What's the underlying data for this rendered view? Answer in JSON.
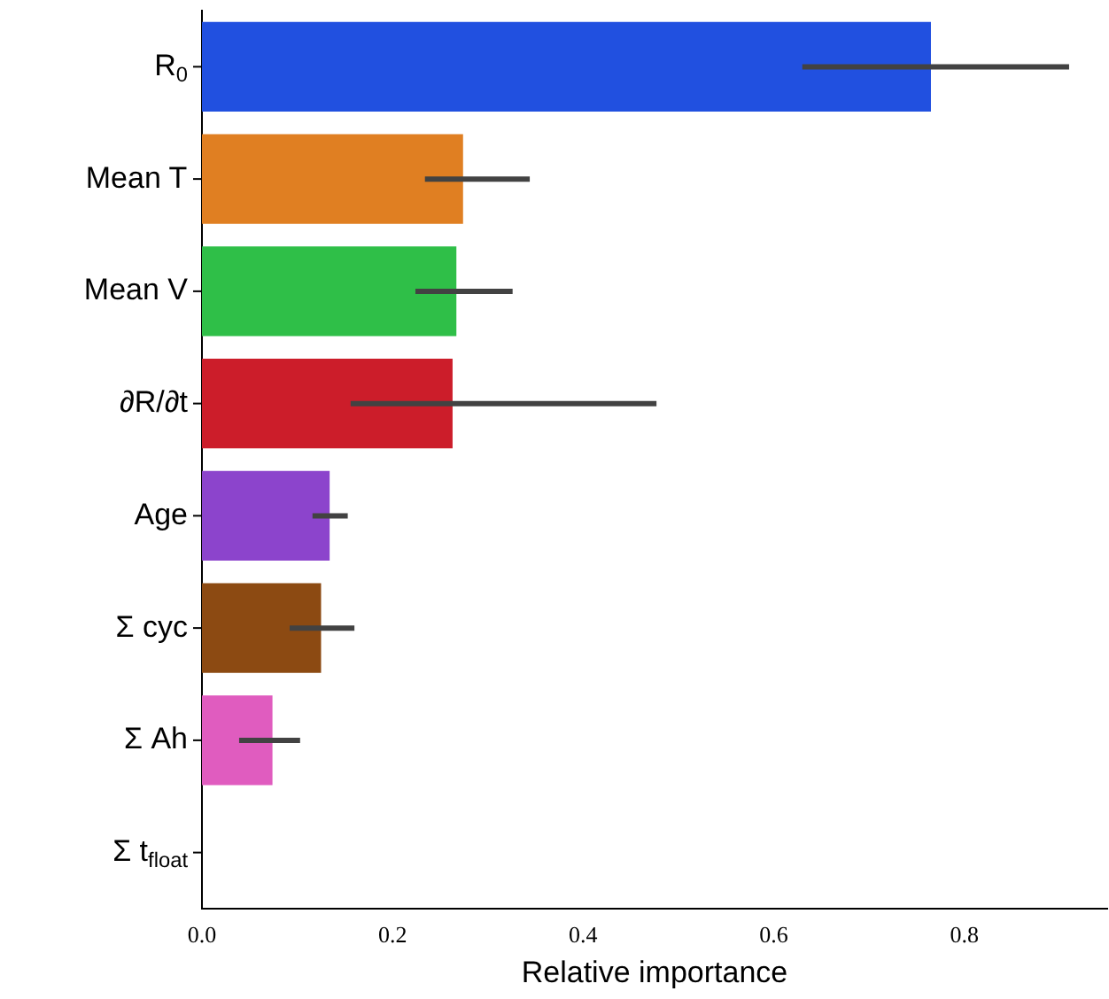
{
  "chart_data": {
    "type": "bar",
    "orientation": "horizontal",
    "xlabel": "Relative importance",
    "categories": [
      "R$_{0}$",
      "Mean T",
      "Mean V",
      "∂R/∂t",
      "Age",
      "Σ cyc",
      "Σ Ah",
      "Σ t$_{float}$"
    ],
    "values": [
      0.765,
      0.274,
      0.267,
      0.263,
      0.134,
      0.125,
      0.074,
      0.0
    ],
    "errors": [
      [
        0.63,
        0.91
      ],
      [
        0.234,
        0.344
      ],
      [
        0.224,
        0.326
      ],
      [
        0.156,
        0.477
      ],
      [
        0.116,
        0.153
      ],
      [
        0.092,
        0.16
      ],
      [
        0.039,
        0.103
      ],
      null
    ],
    "colors": [
      "#2150e0",
      "#e07f22",
      "#2fbf48",
      "#cc1d2a",
      "#8c44cc",
      "#8c4a12",
      "#e05cbf",
      "#a3a3a3"
    ],
    "xlim": [
      0,
      0.95
    ],
    "xticks": [
      {
        "value": 0,
        "label": "0.0"
      },
      0.2,
      0.4,
      0.6,
      0.8
    ],
    "grid": false,
    "legend": false
  }
}
